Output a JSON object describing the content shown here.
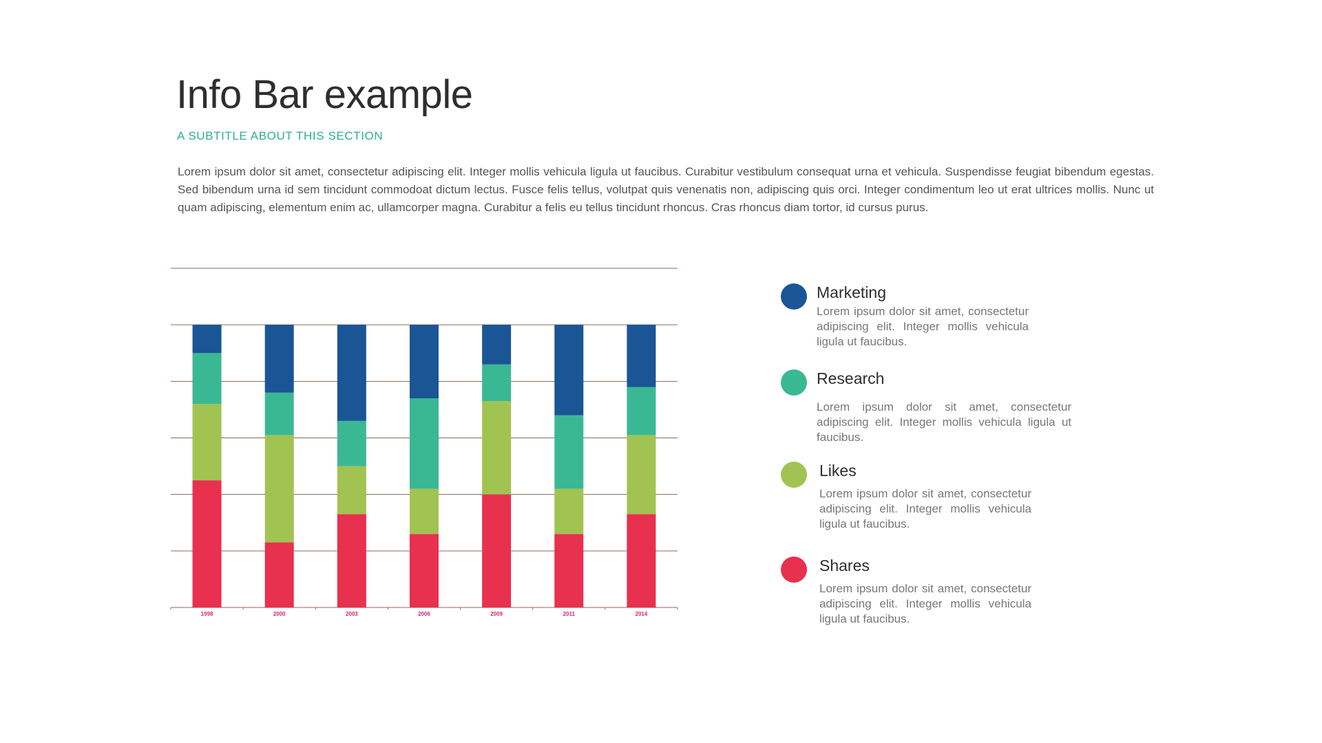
{
  "header": {
    "title": "Info Bar example",
    "subtitle": "A SUBTITLE ABOUT THIS SECTION",
    "intro": "Lorem ipsum dolor sit amet, consectetur adipiscing elit. Integer mollis vehicula ligula ut faucibus. Curabitur vestibulum consequat urna et vehicula. Suspendisse feugiat bibendum egestas. Sed bibendum urna id sem tincidunt commodoat dictum lectus. Fusce felis tellus, volutpat quis venenatis non, adipiscing quis orci. Integer condimentum leo ut erat ultrices mollis. Nunc ut quam adipiscing, elementum enim ac, ullamcorper magna. Curabitur a felis eu tellus tincidunt rhoncus. Cras rhoncus diam tortor, id cursus purus."
  },
  "colors": {
    "marketing": "#1a5596",
    "research": "#3ab894",
    "likes": "#a1c351",
    "shares": "#e8304f",
    "gridline": "#8a6a5a",
    "tick_label": "#d6247a"
  },
  "legend": {
    "items": [
      {
        "title": "Marketing",
        "description": "Lorem ipsum dolor sit amet, consectetur adipiscing elit. Integer mollis vehicula ligula ut faucibus.",
        "color": "#1a5596"
      },
      {
        "title": "Research",
        "description": "Lorem ipsum dolor sit amet, consectetur adipiscing elit. Integer mollis vehicula ligula ut faucibus.",
        "color": "#3ab894"
      },
      {
        "title": "Likes",
        "description": "Lorem ipsum dolor sit amet, consectetur adipiscing elit. Integer mollis vehicula ligula ut faucibus.",
        "color": "#a1c351"
      },
      {
        "title": "Shares",
        "description": "Lorem ipsum dolor sit amet, consectetur adipiscing elit. Integer mollis vehicula ligula ut faucibus.",
        "color": "#e8304f"
      }
    ]
  },
  "chart_data": {
    "type": "bar",
    "stacked": true,
    "categories": [
      "1998",
      "2000",
      "2003",
      "2006",
      "2009",
      "2011",
      "2014"
    ],
    "series": [
      {
        "name": "Shares",
        "color": "#e8304f",
        "values": [
          45,
          23,
          33,
          26,
          40,
          26,
          33
        ]
      },
      {
        "name": "Likes",
        "color": "#a1c351",
        "values": [
          27,
          38,
          17,
          16,
          33,
          16,
          28
        ]
      },
      {
        "name": "Research",
        "color": "#3ab894",
        "values": [
          18,
          15,
          16,
          32,
          13,
          26,
          17
        ]
      },
      {
        "name": "Marketing",
        "color": "#1a5596",
        "values": [
          10,
          24,
          34,
          26,
          14,
          32,
          22
        ]
      }
    ],
    "ylim": [
      0,
      120
    ],
    "gridlines": [
      0,
      20,
      40,
      60,
      80,
      100,
      120
    ],
    "grid": true,
    "y_tick_labels_shown": false,
    "legend_position": "right"
  }
}
